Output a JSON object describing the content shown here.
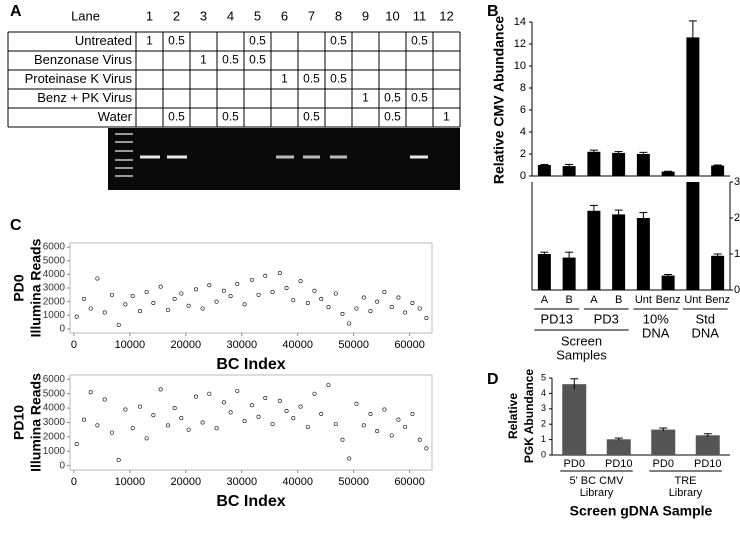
{
  "panel_labels": [
    "A",
    "B",
    "C",
    "D"
  ],
  "table": {
    "corner": "Lane",
    "columns": [
      1,
      2,
      3,
      4,
      5,
      6,
      7,
      8,
      9,
      10,
      11,
      12
    ],
    "rows": [
      {
        "label": "Untreated",
        "cells": [
          1,
          0.5,
          null,
          null,
          0.5,
          null,
          null,
          0.5,
          null,
          null,
          0.5,
          null
        ]
      },
      {
        "label": "Benzonase Virus",
        "cells": [
          null,
          null,
          1,
          0.5,
          0.5,
          null,
          null,
          null,
          null,
          null,
          null,
          null
        ]
      },
      {
        "label": "Proteinase K Virus",
        "cells": [
          null,
          null,
          null,
          null,
          null,
          1,
          0.5,
          0.5,
          null,
          null,
          null,
          null
        ]
      },
      {
        "label": "Benz + PK Virus",
        "cells": [
          null,
          null,
          null,
          null,
          null,
          null,
          null,
          null,
          1,
          0.5,
          0.5,
          null
        ]
      },
      {
        "label": "Water",
        "cells": [
          null,
          0.5,
          null,
          0.5,
          null,
          null,
          0.5,
          null,
          null,
          0.5,
          null,
          1
        ]
      }
    ]
  },
  "chart_data": [
    {
      "type": "bar",
      "y_label": "Relative CMV Abundance",
      "categories": [
        "A",
        "B",
        "A",
        "B",
        "Unt",
        "Benz",
        "Unt",
        "Benz"
      ],
      "values": [
        1.0,
        0.9,
        2.2,
        2.1,
        2.0,
        0.4,
        12.6,
        0.95
      ],
      "errors": [
        0.05,
        0.15,
        0.15,
        0.12,
        0.15,
        0.03,
        1.5,
        0.05
      ],
      "color": "#000000",
      "ylim": [
        0,
        14
      ],
      "yticks": [
        0,
        2,
        4,
        6,
        8,
        10,
        12,
        14
      ],
      "y2lim": [
        0,
        3
      ],
      "y2ticks": [
        0,
        1,
        2,
        3
      ],
      "group_labels": [
        "PD13",
        "PD3"
      ],
      "super_labels": [
        [
          "Screen",
          "Samples"
        ],
        [
          "10%",
          "DNA"
        ],
        [
          "Std",
          "DNA"
        ]
      ]
    },
    {
      "type": "scatter",
      "y_label": [
        "PD0",
        "Illumina Reads"
      ],
      "x_label": "BC Index",
      "color": "#000000",
      "x": [
        500,
        1800,
        3000,
        4200,
        5500,
        6800,
        8000,
        9200,
        10500,
        11800,
        13000,
        14200,
        15500,
        16800,
        18000,
        19200,
        20500,
        21800,
        23000,
        24200,
        25500,
        26800,
        28000,
        29200,
        30500,
        31800,
        33000,
        34200,
        35500,
        36800,
        38000,
        39200,
        40500,
        41800,
        43000,
        44200,
        45500,
        46800,
        48000,
        49200,
        50500,
        51800,
        53000,
        54200,
        55500,
        56800,
        58000,
        59200,
        60500,
        61800,
        63000
      ],
      "values": [
        900,
        2200,
        1500,
        3700,
        1200,
        2500,
        300,
        1800,
        2400,
        1300,
        2700,
        1900,
        3100,
        1400,
        2200,
        2600,
        1700,
        2900,
        1500,
        3200,
        2000,
        2800,
        2400,
        3300,
        1800,
        3600,
        2500,
        3900,
        2700,
        4100,
        3000,
        2100,
        3500,
        1900,
        2800,
        2200,
        1600,
        2600,
        1100,
        400,
        1500,
        2300,
        1300,
        2000,
        2700,
        1600,
        2300,
        1200,
        1900,
        1500,
        800
      ],
      "xlim": [
        -700,
        64000
      ],
      "xticks": [
        0,
        10000,
        20000,
        30000,
        40000,
        50000,
        60000
      ],
      "ylim": [
        -300,
        6300
      ],
      "yticks": [
        0,
        1000,
        2000,
        3000,
        4000,
        5000,
        6000
      ]
    },
    {
      "type": "scatter",
      "y_label": [
        "PD10",
        "Illumina Reads"
      ],
      "x_label": "BC Index",
      "color": "#000000",
      "x": [
        500,
        1800,
        3000,
        4200,
        5500,
        6800,
        8000,
        9200,
        10500,
        11800,
        13000,
        14200,
        15500,
        16800,
        18000,
        19200,
        20500,
        21800,
        23000,
        24200,
        25500,
        26800,
        28000,
        29200,
        30500,
        31800,
        33000,
        34200,
        35500,
        36800,
        38000,
        39200,
        40500,
        41800,
        43000,
        44200,
        45500,
        46800,
        48000,
        49200,
        50500,
        51800,
        53000,
        54200,
        55500,
        56800,
        58000,
        59200,
        60500,
        61800,
        63000
      ],
      "values": [
        1500,
        3200,
        5100,
        2800,
        4600,
        2300,
        400,
        3900,
        2600,
        4100,
        1900,
        3500,
        5300,
        2800,
        4000,
        3300,
        2500,
        4800,
        3000,
        5000,
        2600,
        4400,
        3700,
        5200,
        3100,
        4200,
        3400,
        4700,
        2900,
        4500,
        3800,
        3300,
        4100,
        2700,
        5000,
        3600,
        5600,
        2900,
        1800,
        500,
        4300,
        2800,
        3600,
        2400,
        3900,
        2100,
        3200,
        2700,
        3600,
        1800,
        1200
      ],
      "xlim": [
        -700,
        64000
      ],
      "xticks": [
        0,
        10000,
        20000,
        30000,
        40000,
        50000,
        60000
      ],
      "ylim": [
        -300,
        6300
      ],
      "yticks": [
        0,
        1000,
        2000,
        3000,
        4000,
        5000,
        6000
      ]
    },
    {
      "type": "bar",
      "y_label": [
        "Relative",
        "PGK Abundance"
      ],
      "x_label": "Screen gDNA Sample",
      "categories": [
        "PD0",
        "PD10",
        "PD0",
        "PD10"
      ],
      "values": [
        4.6,
        1.02,
        1.65,
        1.28
      ],
      "errors": [
        0.35,
        0.08,
        0.1,
        0.1
      ],
      "color": "#555555",
      "ylim": [
        0,
        5
      ],
      "yticks": [
        0,
        1,
        2,
        3,
        4,
        5
      ],
      "group_labels": [
        [
          "5' BC CMV",
          "Library"
        ],
        [
          "TRE",
          "Library"
        ]
      ]
    }
  ]
}
